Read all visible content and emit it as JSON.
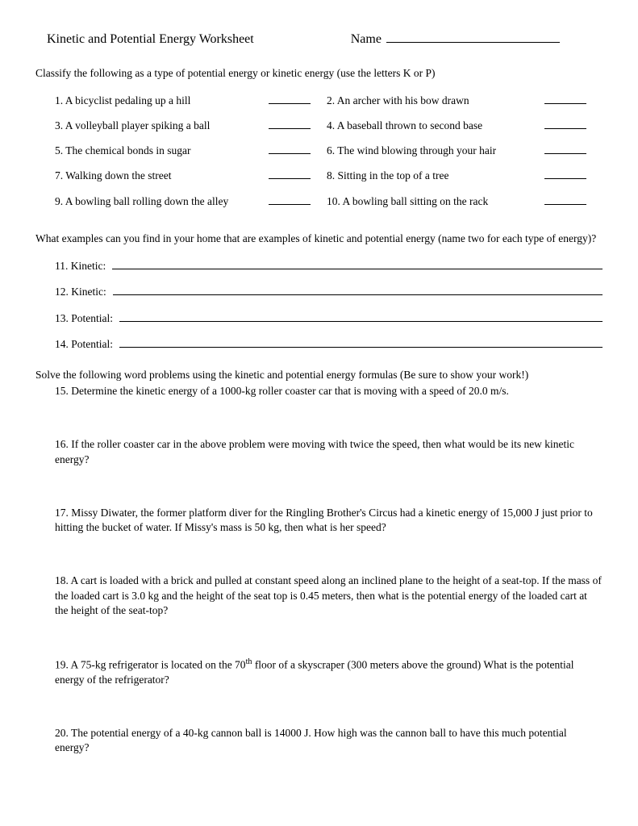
{
  "header": {
    "title": "Kinetic and Potential Energy Worksheet",
    "name_label": "Name"
  },
  "instruction1": "Classify the following as a type of potential energy or kinetic energy (use the letters K or P)",
  "classify": [
    {
      "l_num": "1.",
      "l_text": "A bicyclist pedaling up a hill",
      "r_num": "2.",
      "r_text": "An archer with his bow drawn"
    },
    {
      "l_num": "3.",
      "l_text": "A volleyball player spiking a ball",
      "r_num": "4.",
      "r_text": "A baseball thrown to second base"
    },
    {
      "l_num": "5.",
      "l_text": "The chemical bonds in sugar",
      "r_num": "6.",
      "r_text": "The wind blowing through your hair"
    },
    {
      "l_num": "7.",
      "l_text": "Walking down the street",
      "r_num": "8.",
      "r_text": "Sitting in the top of a tree"
    },
    {
      "l_num": "9.",
      "l_text": "A bowling ball rolling down the alley",
      "r_num": "10.",
      "r_text": "A bowling ball sitting on the rack"
    }
  ],
  "instruction2": "What examples can you find in your home that are examples of kinetic and potential energy (name two for each type of energy)?",
  "fillins": [
    {
      "num": "11.",
      "label": "Kinetic:"
    },
    {
      "num": "12.",
      "label": "Kinetic:"
    },
    {
      "num": "13.",
      "label": "Potential:"
    },
    {
      "num": "14.",
      "label": "Potential:"
    }
  ],
  "instruction3": "Solve the following word problems using the kinetic and potential energy formulas (Be sure to show your work!)",
  "word_problems": [
    {
      "num": "15.",
      "text": "Determine the kinetic energy of a 1000-kg roller coaster car that is moving with a speed of 20.0 m/s."
    },
    {
      "num": "16.",
      "text": "If the roller coaster car in the above problem were moving with twice the speed, then what would be its new kinetic energy?"
    },
    {
      "num": "17.",
      "text": "Missy Diwater, the former platform diver for the Ringling Brother's Circus had a kinetic energy of 15,000 J just prior to hitting the bucket of water. If Missy's mass is 50 kg, then what is her speed?"
    },
    {
      "num": "18.",
      "text": "A cart is loaded with a brick and pulled at constant speed along an inclined plane to the height of a seat-top. If the mass of the loaded cart is 3.0 kg and the height of the seat top is 0.45 meters, then what is the potential energy of the loaded cart at the height of the seat-top?"
    },
    {
      "num": "19.",
      "html": "A 75-kg refrigerator is located on the 70<sup>th</sup> floor of a skyscraper (300 meters above the ground)  What is the potential energy of the refrigerator?"
    },
    {
      "num": "20.",
      "text": "The potential energy of a 40-kg cannon ball is 14000 J.  How high was the cannon ball to have this much potential energy?"
    }
  ]
}
